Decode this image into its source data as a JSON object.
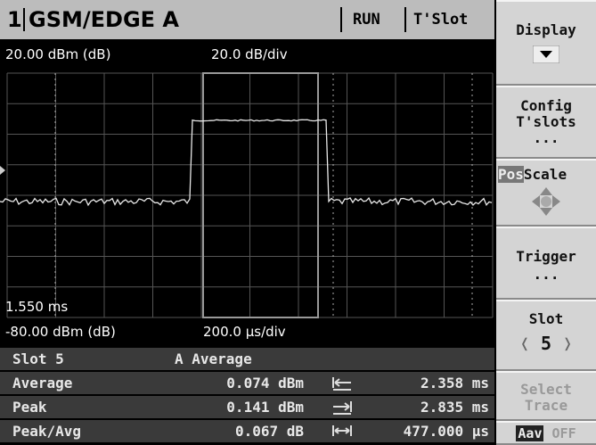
{
  "header": {
    "channel": "1",
    "mode": "GSM/EDGE A",
    "status": "RUN",
    "view": "T'Slot"
  },
  "display": {
    "ref_level": "20.00 dBm (dB)",
    "scale": "20.0 dB/div",
    "time_marker": "1.550 ms",
    "bottom_level": "-80.00 dBm (dB)",
    "time_scale": "200.0 µs/div"
  },
  "table": {
    "title_row": [
      "Slot 5",
      "A Average"
    ],
    "rows": [
      [
        "Average",
        "0.074 dBm",
        "2.358 ms"
      ],
      [
        "Peak",
        "0.141 dBm",
        "2.835 ms"
      ],
      [
        "Peak/Avg",
        "0.067 dB",
        "477.000 µs"
      ]
    ]
  },
  "softkeys": {
    "display": "Display",
    "config": [
      "Config",
      "T'slots",
      "..."
    ],
    "pos": "Pos",
    "scale": "Scale",
    "trigger": [
      "Trigger",
      "..."
    ],
    "slot": "Slot",
    "slot_value": "5",
    "select_trace": [
      "Select",
      "Trace"
    ],
    "trace": "Aav",
    "trace_state": "OFF"
  }
}
